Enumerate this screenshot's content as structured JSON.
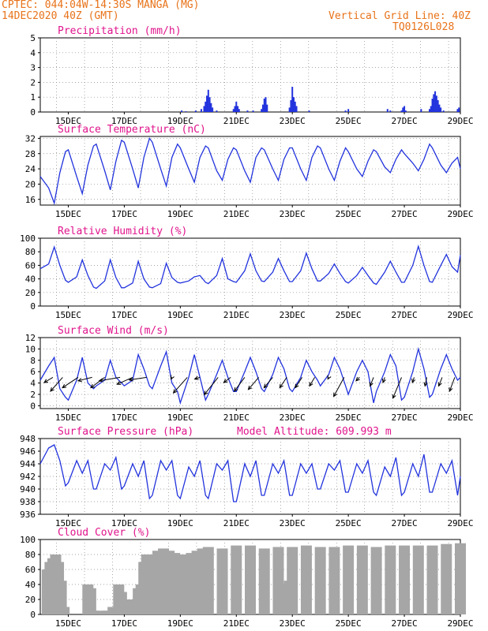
{
  "header": {
    "line1_left": "CPTEC:  044:04W-14:30S  MANGA (MG)",
    "line2_left": "14DEC2020 40Z (GMT)",
    "line1_right": "Vertical Grid Line: 40Z",
    "line2_right": "TQ0126L028"
  },
  "colors": {
    "header": "#e8731a",
    "title": "#e0148c",
    "line": "#2233dd",
    "bars": "#2233dd",
    "cloud": "#a6a6a6",
    "arrows": "#000000"
  },
  "x_axis": {
    "unit": "day",
    "start": 14.0,
    "end": 29.0,
    "ticks": [
      15,
      17,
      19,
      21,
      23,
      25,
      27,
      29
    ],
    "tick_labels": [
      "15DEC",
      "17DEC",
      "19DEC",
      "21DEC",
      "23DEC",
      "25DEC",
      "27DEC",
      "29DEC"
    ],
    "vertical_grid": [
      14.58,
      15.58,
      16.58,
      17.58,
      18.58,
      19.58,
      20.58,
      21.58,
      22.58,
      23.58,
      24.58,
      25.58,
      26.58,
      27.58,
      28.58
    ]
  },
  "chart_data": [
    {
      "id": "precipitation",
      "type": "bar",
      "title": "Precipitation (mm/h)",
      "ylim": [
        0,
        5
      ],
      "yticks": [
        0,
        1,
        2,
        3,
        4,
        5
      ],
      "x": [
        19.05,
        19.2,
        19.55,
        19.75,
        19.85,
        19.9,
        19.95,
        20.0,
        20.05,
        20.1,
        20.15,
        20.3,
        20.9,
        20.95,
        21.0,
        21.05,
        21.1,
        21.4,
        21.6,
        21.9,
        21.95,
        22.0,
        22.05,
        22.1,
        22.9,
        22.95,
        23.0,
        23.05,
        23.1,
        23.15,
        23.6,
        24.9,
        25.0,
        26.4,
        26.5,
        26.9,
        26.95,
        27.0,
        27.05,
        27.6,
        27.9,
        27.95,
        28.0,
        28.05,
        28.1,
        28.15,
        28.2,
        28.25,
        28.3,
        28.4,
        28.9,
        28.95
      ],
      "values": [
        0.1,
        0.05,
        0.1,
        0.2,
        0.4,
        0.7,
        1.1,
        1.5,
        1.0,
        0.6,
        0.3,
        0.1,
        0.2,
        0.4,
        0.7,
        0.4,
        0.2,
        0.1,
        0.1,
        0.2,
        0.5,
        0.9,
        1.0,
        0.5,
        0.3,
        0.8,
        1.7,
        1.0,
        0.7,
        0.4,
        0.1,
        0.1,
        0.2,
        0.2,
        0.1,
        0.1,
        0.3,
        0.4,
        0.1,
        0.2,
        0.2,
        0.4,
        0.9,
        1.2,
        1.4,
        1.1,
        0.8,
        0.5,
        0.3,
        0.1,
        0.2,
        0.3
      ]
    },
    {
      "id": "surface-temperature",
      "type": "line",
      "title": "Surface Temperature (nC)",
      "ylim": [
        14.5,
        32.5
      ],
      "yticks": [
        16,
        20,
        24,
        28,
        32
      ],
      "x": [
        14.0,
        14.3,
        14.5,
        14.7,
        14.9,
        15.0,
        15.3,
        15.5,
        15.7,
        15.9,
        16.0,
        16.3,
        16.5,
        16.7,
        16.9,
        17.0,
        17.3,
        17.5,
        17.7,
        17.9,
        18.0,
        18.3,
        18.5,
        18.7,
        18.9,
        19.0,
        19.3,
        19.5,
        19.7,
        19.9,
        20.0,
        20.3,
        20.5,
        20.7,
        20.9,
        21.0,
        21.3,
        21.5,
        21.7,
        21.9,
        22.0,
        22.3,
        22.5,
        22.7,
        22.9,
        23.0,
        23.3,
        23.5,
        23.7,
        23.9,
        24.0,
        24.3,
        24.5,
        24.7,
        24.9,
        25.0,
        25.3,
        25.5,
        25.7,
        25.9,
        26.0,
        26.3,
        26.5,
        26.7,
        26.9,
        27.0,
        27.3,
        27.5,
        27.7,
        27.9,
        28.0,
        28.3,
        28.5,
        28.7,
        28.9,
        29.0
      ],
      "values": [
        22.0,
        19.0,
        15.0,
        23.0,
        28.5,
        29.0,
        22.0,
        17.5,
        25.0,
        30.0,
        30.5,
        23.5,
        18.5,
        26.0,
        31.5,
        31.0,
        24.0,
        19.0,
        27.0,
        32.0,
        31.0,
        24.0,
        19.5,
        27.0,
        30.5,
        29.5,
        24.0,
        20.5,
        27.0,
        30.0,
        29.5,
        23.5,
        21.0,
        26.5,
        29.5,
        29.0,
        23.5,
        20.5,
        27.0,
        29.5,
        29.0,
        24.0,
        21.0,
        26.5,
        29.5,
        29.5,
        24.0,
        21.0,
        27.0,
        30.0,
        29.5,
        24.0,
        21.0,
        26.0,
        29.5,
        28.5,
        24.0,
        22.0,
        26.0,
        29.0,
        28.5,
        24.5,
        23.0,
        26.5,
        29.0,
        28.0,
        25.5,
        23.5,
        26.5,
        30.5,
        29.5,
        25.0,
        23.0,
        25.5,
        27.0,
        24.0
      ]
    },
    {
      "id": "relative-humidity",
      "type": "line",
      "title": "Relative Humidity (%)",
      "ylim": [
        0,
        100
      ],
      "yticks": [
        0,
        20,
        40,
        60,
        80,
        100
      ],
      "x": [
        14.0,
        14.3,
        14.5,
        14.7,
        14.9,
        15.0,
        15.3,
        15.5,
        15.7,
        15.9,
        16.0,
        16.3,
        16.5,
        16.7,
        16.9,
        17.0,
        17.3,
        17.5,
        17.7,
        17.9,
        18.0,
        18.3,
        18.5,
        18.7,
        18.9,
        19.0,
        19.3,
        19.5,
        19.7,
        19.9,
        20.0,
        20.3,
        20.5,
        20.7,
        20.9,
        21.0,
        21.3,
        21.5,
        21.7,
        21.9,
        22.0,
        22.3,
        22.5,
        22.7,
        22.9,
        23.0,
        23.3,
        23.5,
        23.7,
        23.9,
        24.0,
        24.3,
        24.5,
        24.7,
        24.9,
        25.0,
        25.3,
        25.5,
        25.7,
        25.9,
        26.0,
        26.3,
        26.5,
        26.7,
        26.9,
        27.0,
        27.3,
        27.5,
        27.7,
        27.9,
        28.0,
        28.3,
        28.5,
        28.7,
        28.9,
        29.0
      ],
      "values": [
        55,
        62,
        87,
        60,
        38,
        35,
        43,
        68,
        45,
        28,
        26,
        37,
        68,
        42,
        27,
        27,
        34,
        66,
        40,
        28,
        27,
        33,
        63,
        42,
        35,
        34,
        37,
        43,
        45,
        35,
        33,
        45,
        70,
        40,
        36,
        35,
        52,
        77,
        52,
        37,
        36,
        50,
        70,
        52,
        36,
        36,
        52,
        78,
        55,
        37,
        37,
        48,
        62,
        48,
        36,
        34,
        45,
        57,
        45,
        34,
        32,
        50,
        66,
        50,
        35,
        35,
        60,
        88,
        60,
        36,
        35,
        60,
        76,
        58,
        50,
        75
      ]
    },
    {
      "id": "surface-wind",
      "type": "line",
      "title": "Surface Wind (m/s)",
      "ylim": [
        -0.5,
        12
      ],
      "yticks": [
        0,
        2,
        4,
        6,
        8,
        10,
        12
      ],
      "x": [
        14.0,
        14.3,
        14.5,
        14.7,
        14.9,
        15.0,
        15.3,
        15.5,
        15.7,
        15.9,
        16.0,
        16.3,
        16.5,
        16.7,
        16.9,
        17.0,
        17.3,
        17.5,
        17.7,
        17.9,
        18.0,
        18.3,
        18.5,
        18.7,
        18.9,
        19.0,
        19.3,
        19.5,
        19.7,
        19.9,
        20.0,
        20.3,
        20.5,
        20.7,
        20.9,
        21.0,
        21.3,
        21.5,
        21.7,
        21.9,
        22.0,
        22.3,
        22.5,
        22.7,
        22.9,
        23.0,
        23.3,
        23.5,
        23.7,
        23.9,
        24.0,
        24.3,
        24.5,
        24.7,
        24.9,
        25.0,
        25.3,
        25.5,
        25.7,
        25.9,
        26.0,
        26.3,
        26.5,
        26.7,
        26.9,
        27.0,
        27.3,
        27.5,
        27.7,
        27.9,
        28.0,
        28.3,
        28.5,
        28.7,
        28.9,
        29.0
      ],
      "values": [
        4.5,
        7.0,
        8.5,
        3.0,
        1.5,
        1.0,
        4.5,
        8.5,
        4.0,
        3.0,
        3.5,
        4.5,
        8.0,
        5.0,
        4.0,
        3.5,
        4.5,
        9.0,
        6.5,
        3.5,
        3.0,
        7.0,
        9.5,
        4.0,
        2.5,
        0.5,
        5.0,
        9.0,
        5.0,
        1.0,
        2.0,
        5.5,
        8.0,
        5.0,
        2.5,
        2.5,
        6.0,
        8.5,
        6.0,
        3.0,
        2.5,
        5.5,
        8.5,
        6.5,
        3.0,
        2.5,
        5.0,
        8.0,
        6.0,
        4.5,
        3.5,
        5.5,
        8.5,
        6.5,
        3.5,
        2.0,
        6.0,
        8.0,
        6.0,
        0.5,
        2.5,
        6.0,
        9.0,
        7.0,
        1.0,
        1.5,
        6.0,
        10.0,
        6.5,
        1.5,
        2.0,
        6.5,
        9.0,
        6.5,
        4.5,
        5.0
      ],
      "wind_vectors": [
        {
          "x": 14.45,
          "dx": 0.5,
          "dy": 0.3
        },
        {
          "x": 14.8,
          "dx": 0.7,
          "dy": 0.8
        },
        {
          "x": 15.35,
          "dx": 0.9,
          "dy": 0.6
        },
        {
          "x": 15.85,
          "dx": 0.8,
          "dy": 0.2
        },
        {
          "x": 16.3,
          "dx": 0.8,
          "dy": 0.6
        },
        {
          "x": 16.85,
          "dx": 1.2,
          "dy": 0.2
        },
        {
          "x": 17.3,
          "dx": 0.9,
          "dy": 0.4
        },
        {
          "x": 17.8,
          "dx": 1.0,
          "dy": 0.15
        },
        {
          "x": 18.7,
          "dx": 0.05,
          "dy": 0.1
        },
        {
          "x": 19.25,
          "dx": 0.8,
          "dy": 0.9
        },
        {
          "x": 19.7,
          "dx": 0.3,
          "dy": 0.1
        },
        {
          "x": 20.35,
          "dx": 0.8,
          "dy": 1.0
        },
        {
          "x": 20.8,
          "dx": 0.4,
          "dy": 0.3
        },
        {
          "x": 21.3,
          "dx": 0.6,
          "dy": 0.8
        },
        {
          "x": 21.8,
          "dx": 0.6,
          "dy": 0.7
        },
        {
          "x": 22.3,
          "dx": 0.5,
          "dy": 0.6
        },
        {
          "x": 22.8,
          "dx": 0.4,
          "dy": 0.6
        },
        {
          "x": 23.35,
          "dx": 0.4,
          "dy": 0.6
        },
        {
          "x": 23.8,
          "dx": 0.3,
          "dy": 0.5
        },
        {
          "x": 24.3,
          "dx": 0.05,
          "dy": 0.1
        },
        {
          "x": 24.85,
          "dx": 0.6,
          "dy": 1.1
        },
        {
          "x": 25.4,
          "dx": 0.2,
          "dy": 0.2
        },
        {
          "x": 25.9,
          "dx": 0.2,
          "dy": 0.5
        },
        {
          "x": 26.3,
          "dx": 0.1,
          "dy": 0.3
        },
        {
          "x": 26.9,
          "dx": 0.5,
          "dy": 1.2
        },
        {
          "x": 27.35,
          "dx": 0.1,
          "dy": 0.3
        },
        {
          "x": 27.8,
          "dx": 0.1,
          "dy": 0.5
        },
        {
          "x": 28.35,
          "dx": 0.2,
          "dy": 0.5
        },
        {
          "x": 28.8,
          "dx": 0.3,
          "dy": 0.8
        }
      ]
    },
    {
      "id": "surface-pressure",
      "type": "line",
      "title": "Surface Pressure (hPa)",
      "subtitle": "Model Altitude: 609.993 m",
      "ylim": [
        936,
        948
      ],
      "yticks": [
        936,
        938,
        940,
        942,
        944,
        946,
        948
      ],
      "x": [
        14.0,
        14.3,
        14.5,
        14.7,
        14.9,
        15.0,
        15.3,
        15.5,
        15.7,
        15.9,
        16.0,
        16.3,
        16.5,
        16.7,
        16.9,
        17.0,
        17.3,
        17.5,
        17.7,
        17.9,
        18.0,
        18.3,
        18.5,
        18.7,
        18.9,
        19.0,
        19.3,
        19.5,
        19.7,
        19.9,
        20.0,
        20.3,
        20.5,
        20.7,
        20.9,
        21.0,
        21.3,
        21.5,
        21.7,
        21.9,
        22.0,
        22.3,
        22.5,
        22.7,
        22.9,
        23.0,
        23.3,
        23.5,
        23.7,
        23.9,
        24.0,
        24.3,
        24.5,
        24.7,
        24.9,
        25.0,
        25.3,
        25.5,
        25.7,
        25.9,
        26.0,
        26.3,
        26.5,
        26.7,
        26.9,
        27.0,
        27.3,
        27.5,
        27.7,
        27.9,
        28.0,
        28.3,
        28.5,
        28.7,
        28.9,
        29.0
      ],
      "values": [
        944.0,
        946.5,
        947.0,
        944.5,
        940.5,
        941.0,
        944.5,
        942.5,
        944.5,
        940.0,
        940.0,
        944.0,
        943.0,
        945.0,
        940.0,
        940.5,
        944.0,
        942.0,
        944.5,
        938.5,
        939.0,
        944.5,
        943.0,
        944.5,
        939.0,
        938.5,
        943.5,
        942.0,
        944.5,
        939.0,
        938.5,
        944.0,
        943.0,
        944.5,
        938.0,
        938.0,
        944.0,
        942.0,
        944.5,
        939.0,
        939.0,
        944.0,
        942.5,
        944.5,
        939.0,
        939.0,
        944.0,
        942.5,
        944.0,
        940.0,
        940.0,
        944.0,
        943.0,
        944.5,
        939.5,
        939.5,
        944.0,
        942.5,
        944.5,
        939.5,
        939.0,
        943.5,
        942.0,
        945.0,
        939.0,
        939.5,
        944.0,
        942.0,
        945.5,
        939.5,
        939.5,
        944.0,
        942.5,
        944.5,
        939.0,
        942.0
      ]
    },
    {
      "id": "cloud-cover",
      "type": "bar",
      "title": "Cloud Cover (%)",
      "ylim": [
        0,
        100
      ],
      "yticks": [
        0,
        20,
        40,
        60,
        80,
        100
      ],
      "x": [
        14.25,
        14.35,
        14.45,
        14.55,
        14.65,
        14.75,
        14.85,
        15.7,
        15.8,
        15.9,
        16.1,
        16.2,
        16.4,
        16.6,
        16.8,
        16.9,
        17.0,
        17.1,
        17.3,
        17.5,
        17.6,
        17.7,
        17.8,
        17.9,
        18.0,
        18.2,
        18.4,
        18.6,
        18.8,
        19.0,
        19.2,
        19.4,
        19.6,
        19.8,
        20.0,
        20.5,
        21.0,
        21.5,
        22.0,
        22.5,
        22.8,
        22.9,
        23.0,
        23.5,
        24.0,
        24.5,
        25.0,
        25.5,
        26.0,
        26.5,
        27.0,
        27.5,
        28.0,
        28.5,
        29.0
      ],
      "values": [
        60,
        70,
        75,
        80,
        70,
        45,
        10,
        40,
        35,
        5,
        3,
        5,
        5,
        10,
        40,
        30,
        10,
        20,
        20,
        35,
        40,
        70,
        80,
        70,
        80,
        85,
        88,
        85,
        82,
        80,
        80,
        82,
        85,
        88,
        90,
        88,
        92,
        92,
        88,
        90,
        40,
        45,
        90,
        92,
        90,
        90,
        92,
        92,
        90,
        92,
        92,
        92,
        92,
        94,
        95
      ]
    }
  ]
}
